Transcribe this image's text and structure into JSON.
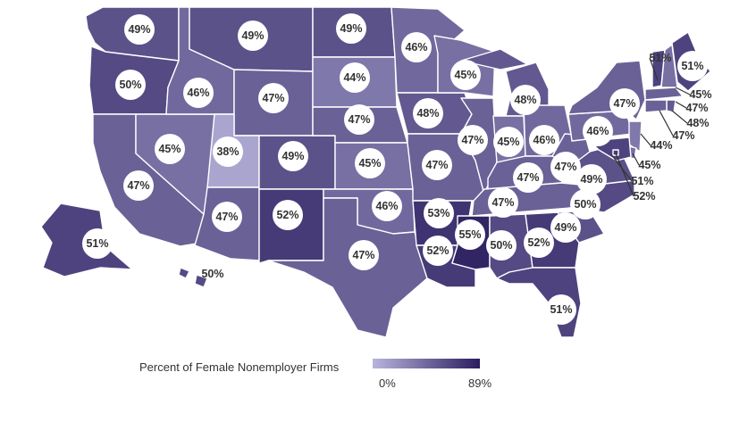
{
  "map": {
    "type": "choropleth",
    "region": "United States",
    "color_scale": {
      "min_value": 0,
      "max_value": 89,
      "min_color": "#b8b4dc",
      "max_color": "#2a1d5e"
    },
    "legend": {
      "title": "Percent of Female Nonemployer Firms",
      "min_label": "0%",
      "max_label": "89%",
      "placement": "bottom-center"
    },
    "states": [
      {
        "id": "WA",
        "value": 49,
        "label": "49%"
      },
      {
        "id": "OR",
        "value": 50,
        "label": "50%"
      },
      {
        "id": "CA",
        "value": 47,
        "label": "47%"
      },
      {
        "id": "NV",
        "value": 45,
        "label": "45%"
      },
      {
        "id": "ID",
        "value": 46,
        "label": "46%"
      },
      {
        "id": "MT",
        "value": 49,
        "label": "49%"
      },
      {
        "id": "WY",
        "value": 47,
        "label": "47%"
      },
      {
        "id": "UT",
        "value": 38,
        "label": "38%"
      },
      {
        "id": "AZ",
        "value": 47,
        "label": "47%"
      },
      {
        "id": "CO",
        "value": 49,
        "label": "49%"
      },
      {
        "id": "NM",
        "value": 52,
        "label": "52%"
      },
      {
        "id": "ND",
        "value": 49,
        "label": "49%"
      },
      {
        "id": "SD",
        "value": 44,
        "label": "44%"
      },
      {
        "id": "NE",
        "value": 47,
        "label": "47%"
      },
      {
        "id": "KS",
        "value": 45,
        "label": "45%"
      },
      {
        "id": "OK",
        "value": 46,
        "label": "46%"
      },
      {
        "id": "TX",
        "value": 47,
        "label": "47%"
      },
      {
        "id": "MN",
        "value": 46,
        "label": "46%"
      },
      {
        "id": "IA",
        "value": 48,
        "label": "48%"
      },
      {
        "id": "MO",
        "value": 47,
        "label": "47%"
      },
      {
        "id": "AR",
        "value": 53,
        "label": "53%"
      },
      {
        "id": "LA",
        "value": 52,
        "label": "52%"
      },
      {
        "id": "WI",
        "value": 45,
        "label": "45%"
      },
      {
        "id": "IL",
        "value": 47,
        "label": "47%"
      },
      {
        "id": "MI",
        "value": 48,
        "label": "48%"
      },
      {
        "id": "IN",
        "value": 45,
        "label": "45%"
      },
      {
        "id": "OH",
        "value": 46,
        "label": "46%"
      },
      {
        "id": "KY",
        "value": 47,
        "label": "47%"
      },
      {
        "id": "TN",
        "value": 47,
        "label": "47%"
      },
      {
        "id": "MS",
        "value": 55,
        "label": "55%"
      },
      {
        "id": "AL",
        "value": 50,
        "label": "50%"
      },
      {
        "id": "GA",
        "value": 52,
        "label": "52%"
      },
      {
        "id": "FL",
        "value": 51,
        "label": "51%"
      },
      {
        "id": "SC",
        "value": 49,
        "label": "49%"
      },
      {
        "id": "NC",
        "value": 50,
        "label": "50%"
      },
      {
        "id": "VA",
        "value": 49,
        "label": "49%"
      },
      {
        "id": "WV",
        "value": 47,
        "label": "47%"
      },
      {
        "id": "PA",
        "value": 46,
        "label": "46%"
      },
      {
        "id": "NY",
        "value": 47,
        "label": "47%"
      },
      {
        "id": "ME",
        "value": 51,
        "label": "51%"
      },
      {
        "id": "VT",
        "value": 51,
        "label": "51%"
      },
      {
        "id": "NH",
        "value": 45,
        "label": "45%"
      },
      {
        "id": "MA",
        "value": 47,
        "label": "47%"
      },
      {
        "id": "RI",
        "value": 48,
        "label": "48%"
      },
      {
        "id": "CT",
        "value": 47,
        "label": "47%"
      },
      {
        "id": "NJ",
        "value": 44,
        "label": "44%"
      },
      {
        "id": "DE",
        "value": 45,
        "label": "45%"
      },
      {
        "id": "MD",
        "value": 51,
        "label": "51%"
      },
      {
        "id": "DC",
        "value": 52,
        "label": "52%"
      },
      {
        "id": "AK",
        "value": 51,
        "label": "51%"
      },
      {
        "id": "HI",
        "value": 50,
        "label": "50%"
      }
    ]
  }
}
